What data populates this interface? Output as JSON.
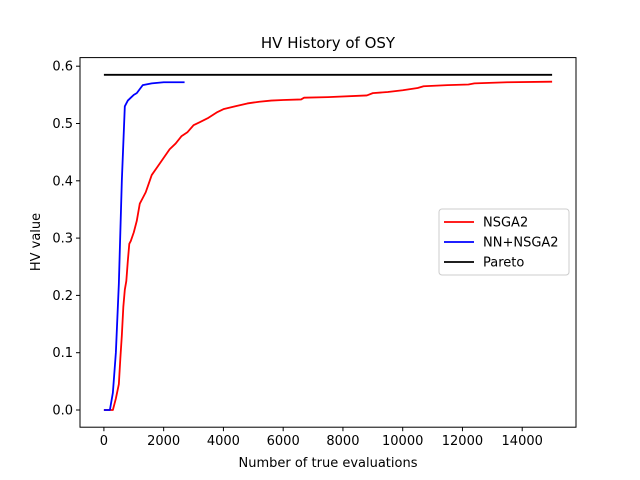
{
  "chart_data": {
    "type": "line",
    "title": "HV History of OSY",
    "xlabel": "Number of true evaluations",
    "ylabel": "HV value",
    "xlim": [
      -800,
      15800
    ],
    "ylim": [
      -0.03,
      0.615
    ],
    "xticks": [
      0,
      2000,
      4000,
      6000,
      8000,
      10000,
      12000,
      14000
    ],
    "yticks": [
      0.0,
      0.1,
      0.2,
      0.3,
      0.4,
      0.5,
      0.6
    ],
    "xtick_labels": [
      "0",
      "2000",
      "4000",
      "6000",
      "8000",
      "10000",
      "12000",
      "14000"
    ],
    "ytick_labels": [
      "0.0",
      "0.1",
      "0.2",
      "0.3",
      "0.4",
      "0.5",
      "0.6"
    ],
    "grid": false,
    "legend_position": "center-right",
    "series": [
      {
        "name": "NSGA2",
        "color": "#ff0000",
        "points": [
          [
            0,
            0.0
          ],
          [
            250,
            0.0
          ],
          [
            300,
            0.0
          ],
          [
            400,
            0.02
          ],
          [
            500,
            0.045
          ],
          [
            550,
            0.09
          ],
          [
            600,
            0.13
          ],
          [
            650,
            0.18
          ],
          [
            700,
            0.21
          ],
          [
            750,
            0.225
          ],
          [
            800,
            0.26
          ],
          [
            850,
            0.29
          ],
          [
            900,
            0.295
          ],
          [
            1000,
            0.31
          ],
          [
            1100,
            0.33
          ],
          [
            1200,
            0.36
          ],
          [
            1300,
            0.37
          ],
          [
            1400,
            0.38
          ],
          [
            1500,
            0.395
          ],
          [
            1600,
            0.41
          ],
          [
            1800,
            0.425
          ],
          [
            2000,
            0.44
          ],
          [
            2200,
            0.455
          ],
          [
            2400,
            0.465
          ],
          [
            2600,
            0.478
          ],
          [
            2800,
            0.485
          ],
          [
            3000,
            0.497
          ],
          [
            3200,
            0.502
          ],
          [
            3500,
            0.51
          ],
          [
            3800,
            0.52
          ],
          [
            4000,
            0.525
          ],
          [
            4400,
            0.53
          ],
          [
            4800,
            0.535
          ],
          [
            5200,
            0.538
          ],
          [
            5600,
            0.54
          ],
          [
            6000,
            0.541
          ],
          [
            6600,
            0.542
          ],
          [
            6700,
            0.545
          ],
          [
            7500,
            0.546
          ],
          [
            8800,
            0.549
          ],
          [
            9000,
            0.553
          ],
          [
            9500,
            0.555
          ],
          [
            10000,
            0.558
          ],
          [
            10500,
            0.562
          ],
          [
            10700,
            0.565
          ],
          [
            11500,
            0.567
          ],
          [
            12200,
            0.568
          ],
          [
            12400,
            0.57
          ],
          [
            13500,
            0.572
          ],
          [
            15000,
            0.573
          ]
        ]
      },
      {
        "name": "NN+NSGA2",
        "color": "#0000ff",
        "points": [
          [
            0,
            0.0
          ],
          [
            200,
            0.0
          ],
          [
            300,
            0.03
          ],
          [
            400,
            0.1
          ],
          [
            500,
            0.22
          ],
          [
            600,
            0.4
          ],
          [
            700,
            0.53
          ],
          [
            800,
            0.54
          ],
          [
            900,
            0.545
          ],
          [
            1000,
            0.55
          ],
          [
            1100,
            0.553
          ],
          [
            1200,
            0.56
          ],
          [
            1300,
            0.567
          ],
          [
            1600,
            0.57
          ],
          [
            2000,
            0.572
          ],
          [
            2700,
            0.572
          ]
        ]
      },
      {
        "name": "Pareto",
        "color": "#000000",
        "points": [
          [
            0,
            0.585
          ],
          [
            15000,
            0.585
          ]
        ]
      }
    ]
  }
}
